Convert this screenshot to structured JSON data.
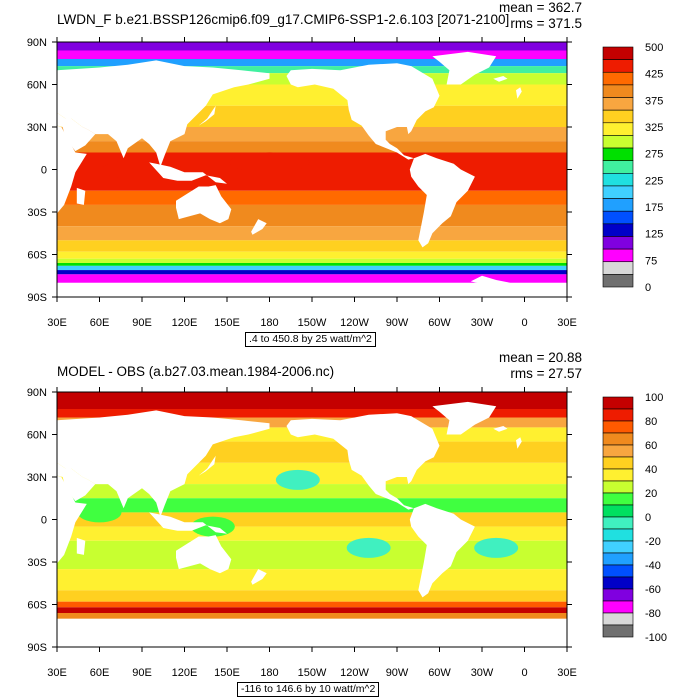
{
  "panels": [
    {
      "title": "LWDN_F b.e21.BSSP126cmip6.f09_g17.CMIP6-SSP1-2.6.103 [2071-2100]",
      "mean_label": "mean = 362.7",
      "rms_label": "rms = 371.5",
      "info": ".4 to 450.8 by 25 watt/m^2",
      "colorbar_labels": [
        "500",
        "425",
        "375",
        "325",
        "275",
        "225",
        "175",
        "125",
        "75",
        "0"
      ],
      "colorbar_colors": [
        "#c40000",
        "#ee1c00",
        "#ff6a00",
        "#f08a1e",
        "#f8a640",
        "#ffd020",
        "#fff030",
        "#c8ff30",
        "#00e000",
        "#40f0a0",
        "#20e0e0",
        "#40d0ff",
        "#20a0ff",
        "#0050ff",
        "#0000c8",
        "#8000e0",
        "#ff00ff",
        "#d8d8d8",
        "#707070"
      ]
    },
    {
      "title": "MODEL - OBS (a.b27.03.mean.1984-2006.nc)",
      "mean_label": "mean = 20.88",
      "rms_label": "rms = 27.57",
      "info": "-116 to 146.6 by 10 watt/m^2",
      "colorbar_labels": [
        "100",
        "80",
        "60",
        "40",
        "20",
        "0",
        "-20",
        "-40",
        "-60",
        "-80",
        "-100"
      ],
      "colorbar_colors": [
        "#c40000",
        "#ee1c00",
        "#ff5a00",
        "#f08a1e",
        "#f8a640",
        "#ffd020",
        "#fff030",
        "#c8ff30",
        "#40ff40",
        "#00e060",
        "#40f0c0",
        "#20e0e0",
        "#40d0ff",
        "#20a0ff",
        "#0050ff",
        "#0000c8",
        "#8000e0",
        "#ff00ff",
        "#d8d8d8",
        "#707070"
      ]
    }
  ],
  "x_ticks": [
    "30E",
    "60E",
    "90E",
    "120E",
    "150E",
    "180",
    "150W",
    "120W",
    "90W",
    "60W",
    "30W",
    "0",
    "30E"
  ],
  "y_ticks": [
    "90N",
    "60N",
    "30N",
    "0",
    "30S",
    "60S",
    "90S"
  ]
}
